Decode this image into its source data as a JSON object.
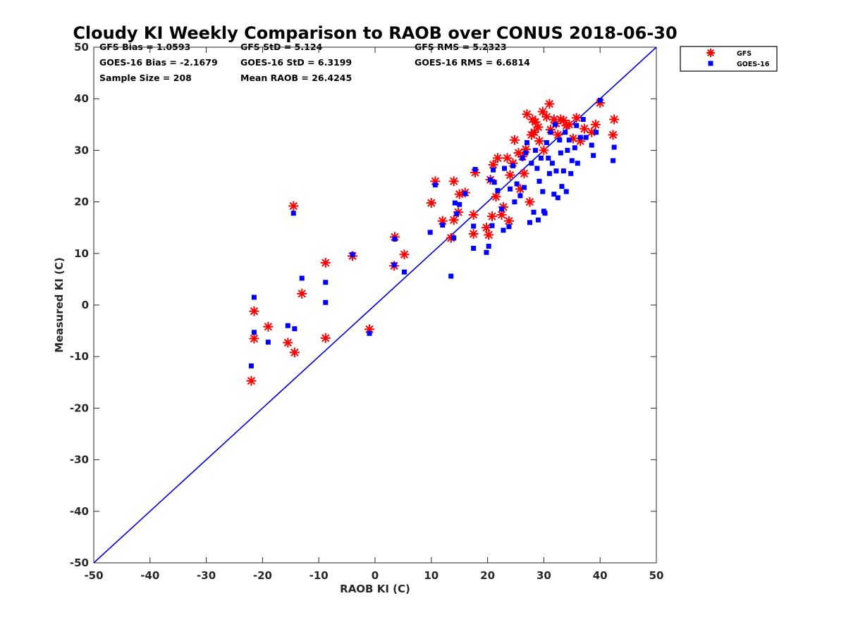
{
  "chart_data": {
    "type": "scatter",
    "title": "Cloudy KI Weekly Comparison to RAOB over CONUS 2018-06-30",
    "xlabel": "RAOB KI (C)",
    "ylabel": "Measured KI (C)",
    "xlim": [
      -50,
      50
    ],
    "ylim": [
      -50,
      50
    ],
    "xticks": [
      "-50",
      "-40",
      "-30",
      "-20",
      "-10",
      "0",
      "10",
      "20",
      "30",
      "40",
      "50"
    ],
    "yticks": [
      "-50",
      "-40",
      "-30",
      "-20",
      "-10",
      "0",
      "10",
      "20",
      "30",
      "40",
      "50"
    ],
    "grid": false,
    "legend_position": "outside-top-right",
    "reference_line": {
      "from": [
        -50,
        -50
      ],
      "to": [
        50,
        50
      ],
      "color": "#0000dd"
    },
    "stats": [
      "GFS Bias = 1.0593",
      "GFS StD = 5.124",
      "GFS RMS = 5.2323",
      "GOES-16 Bias = -2.1679",
      "GOES-16 StD = 6.3199",
      "GOES-16 RMS = 6.6814",
      "Sample Size = 208",
      "Mean RAOB = 26.4245"
    ],
    "series": [
      {
        "name": "GFS",
        "marker": "asterisk",
        "color": "#ff0000",
        "points": [
          [
            -14.5,
            19.2
          ],
          [
            -22,
            -14.7
          ],
          [
            -21.5,
            -1.2
          ],
          [
            -21.5,
            -6.5
          ],
          [
            -19,
            -4.2
          ],
          [
            -15.5,
            -7.3
          ],
          [
            -14.3,
            -9.2
          ],
          [
            -13,
            2.2
          ],
          [
            -8.8,
            8.2
          ],
          [
            -8.8,
            -6.4
          ],
          [
            -4,
            9.5
          ],
          [
            -1,
            -4.7
          ],
          [
            3.5,
            13.2
          ],
          [
            3.4,
            7.6
          ],
          [
            5.2,
            9.8
          ],
          [
            10,
            19.8
          ],
          [
            10.7,
            24
          ],
          [
            12,
            16.3
          ],
          [
            13.5,
            13
          ],
          [
            14,
            16.5
          ],
          [
            14,
            24
          ],
          [
            14.8,
            18
          ],
          [
            15,
            21.5
          ],
          [
            16,
            21.8
          ],
          [
            17.5,
            17.5
          ],
          [
            17.8,
            25.7
          ],
          [
            17.5,
            13.8
          ],
          [
            19.8,
            15
          ],
          [
            20.2,
            13.6
          ],
          [
            20.5,
            24.3
          ],
          [
            20.8,
            17.2
          ],
          [
            21,
            27.2
          ],
          [
            21.5,
            21
          ],
          [
            21.8,
            28.5
          ],
          [
            22.5,
            17.5
          ],
          [
            22.8,
            19
          ],
          [
            23.5,
            28.5
          ],
          [
            23.8,
            16.3
          ],
          [
            24,
            25.2
          ],
          [
            24.5,
            27.5
          ],
          [
            24.8,
            32
          ],
          [
            25.5,
            29.5
          ],
          [
            25.8,
            22.5
          ],
          [
            26.2,
            28.8
          ],
          [
            26.5,
            25.5
          ],
          [
            26.8,
            30.2
          ],
          [
            27,
            37
          ],
          [
            27.5,
            20
          ],
          [
            27.8,
            33
          ],
          [
            28,
            36
          ],
          [
            28.3,
            33.5
          ],
          [
            28.5,
            35.5
          ],
          [
            29,
            34.5
          ],
          [
            29.2,
            31.8
          ],
          [
            29.8,
            37.5
          ],
          [
            30,
            30
          ],
          [
            30.5,
            36.5
          ],
          [
            31,
            39
          ],
          [
            31.2,
            34
          ],
          [
            31.8,
            36
          ],
          [
            32.2,
            35.2
          ],
          [
            32.5,
            33
          ],
          [
            33,
            36
          ],
          [
            33.5,
            35.8
          ],
          [
            34,
            34.8
          ],
          [
            34.5,
            35
          ],
          [
            35.2,
            32.3
          ],
          [
            35.8,
            36.3
          ],
          [
            36.5,
            31.8
          ],
          [
            37.2,
            34.2
          ],
          [
            38.5,
            33.5
          ],
          [
            39.2,
            35
          ],
          [
            40,
            39.2
          ],
          [
            42.3,
            33
          ],
          [
            42.5,
            36
          ]
        ]
      },
      {
        "name": "GOES-16",
        "marker": "square",
        "color": "#0000ff",
        "points": [
          [
            -14.5,
            17.8
          ],
          [
            -22,
            -11.8
          ],
          [
            -21.5,
            1.5
          ],
          [
            -21.5,
            -5.3
          ],
          [
            -19,
            -7.2
          ],
          [
            -15.5,
            -4
          ],
          [
            -14.3,
            -4.6
          ],
          [
            -13,
            5.2
          ],
          [
            -8.8,
            4.4
          ],
          [
            -8.8,
            0.5
          ],
          [
            -4,
            9.8
          ],
          [
            -1,
            -5.5
          ],
          [
            3.5,
            12.8
          ],
          [
            3.4,
            7.8
          ],
          [
            5.2,
            6.4
          ],
          [
            9.8,
            14.1
          ],
          [
            10.7,
            23.3
          ],
          [
            12,
            15.5
          ],
          [
            13.5,
            5.6
          ],
          [
            14,
            13
          ],
          [
            14.2,
            19.8
          ],
          [
            14.5,
            17.7
          ],
          [
            15,
            19.5
          ],
          [
            16,
            21.6
          ],
          [
            17.5,
            15.3
          ],
          [
            17.8,
            26.3
          ],
          [
            17.5,
            11
          ],
          [
            19.8,
            10.2
          ],
          [
            20.2,
            11.4
          ],
          [
            20.5,
            24.3
          ],
          [
            20.8,
            15.4
          ],
          [
            21,
            26.2
          ],
          [
            21.2,
            23.8
          ],
          [
            21.8,
            22.2
          ],
          [
            22.5,
            18.6
          ],
          [
            22.8,
            14.5
          ],
          [
            23,
            26.5
          ],
          [
            23.8,
            15.2
          ],
          [
            24,
            22.5
          ],
          [
            24.5,
            27
          ],
          [
            24.8,
            20
          ],
          [
            25.2,
            23.5
          ],
          [
            25.8,
            21.2
          ],
          [
            26.2,
            28.5
          ],
          [
            26.5,
            22.8
          ],
          [
            26.8,
            29.5
          ],
          [
            27,
            31.5
          ],
          [
            27.5,
            16
          ],
          [
            27.8,
            27.5
          ],
          [
            28.2,
            18
          ],
          [
            28.5,
            30
          ],
          [
            28.8,
            26.5
          ],
          [
            29,
            16.5
          ],
          [
            29.2,
            24
          ],
          [
            29.5,
            28.5
          ],
          [
            29.8,
            22
          ],
          [
            30,
            18.2
          ],
          [
            30.2,
            17.8
          ],
          [
            30.5,
            31.5
          ],
          [
            30.8,
            28.5
          ],
          [
            31,
            25.5
          ],
          [
            31.2,
            33.5
          ],
          [
            31.5,
            27.5
          ],
          [
            31.8,
            21.5
          ],
          [
            32,
            35
          ],
          [
            32.2,
            26
          ],
          [
            32.5,
            20.8
          ],
          [
            32.8,
            32
          ],
          [
            33,
            29.5
          ],
          [
            33.2,
            23
          ],
          [
            33.5,
            26
          ],
          [
            33.8,
            33.5
          ],
          [
            34,
            22
          ],
          [
            34.2,
            30
          ],
          [
            34.5,
            32
          ],
          [
            34.8,
            25.5
          ],
          [
            35,
            28
          ],
          [
            35.5,
            30.5
          ],
          [
            35.8,
            34.8
          ],
          [
            36,
            27.5
          ],
          [
            36.5,
            32.5
          ],
          [
            37,
            36
          ],
          [
            37.5,
            32.5
          ],
          [
            38.5,
            31
          ],
          [
            38.8,
            29
          ],
          [
            39.3,
            33.5
          ],
          [
            40,
            39.7
          ],
          [
            42.3,
            28
          ],
          [
            42.5,
            30.6
          ]
        ]
      }
    ]
  }
}
